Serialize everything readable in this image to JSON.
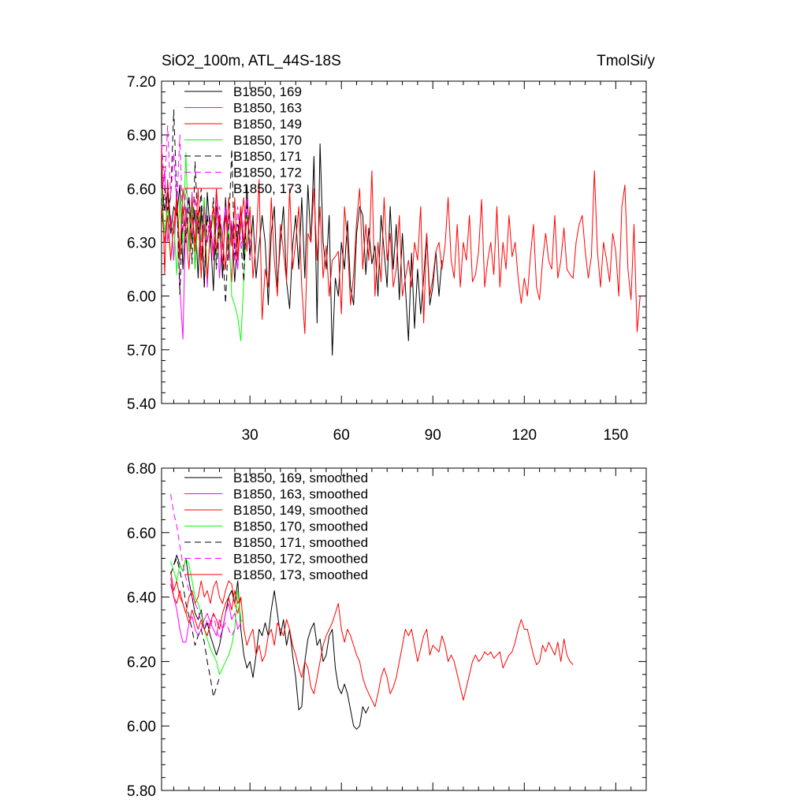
{
  "chart_data": [
    {
      "type": "line",
      "title_left": "SiO2_100m, ATL_44S-18S",
      "title_right": "TmolSi/y",
      "xlim": [
        1,
        160
      ],
      "ylim": [
        5.4,
        7.2
      ],
      "x_ticks": [
        30,
        60,
        90,
        120,
        150
      ],
      "x_tick_labels": [
        "30",
        "60",
        "90",
        "120",
        "150"
      ],
      "y_ticks": [
        5.4,
        5.7,
        6.0,
        6.3,
        6.6,
        6.9,
        7.2
      ],
      "y_tick_labels": [
        "5.40",
        "5.70",
        "6.00",
        "6.30",
        "6.60",
        "6.90",
        "7.20"
      ],
      "legend_position": "top-left",
      "series": [
        {
          "name": "B1850, 169",
          "color": "#000000",
          "dash": "solid",
          "x_start": 1,
          "values": [
            6.62,
            6.48,
            6.58,
            6.35,
            6.5,
            6.45,
            6.62,
            6.15,
            6.44,
            6.55,
            6.32,
            6.48,
            6.1,
            6.5,
            6.05,
            6.58,
            6.34,
            6.03,
            6.5,
            6.42,
            6.1,
            6.55,
            6.2,
            6.4,
            6.08,
            6.33,
            6.5,
            6.2,
            6.62,
            6.22,
            6.45,
            6.1,
            6.28,
            6.45,
            6.3,
            5.95,
            6.35,
            6.5,
            6.05,
            6.3,
            6.5,
            6.08,
            5.93,
            6.28,
            6.45,
            6.15,
            6.55,
            6.1,
            6.62,
            6.3,
            6.78,
            5.85,
            6.85,
            6.3,
            6.15,
            6.45,
            5.67,
            6.1,
            6.0,
            6.3,
            6.15,
            6.42,
            6.05,
            5.95,
            6.35,
            6.5,
            6.45,
            6.12,
            6.38,
            6.18,
            6.28,
            6.0,
            6.45,
            6.25,
            6.05,
            6.5,
            6.15,
            6.4,
            5.98,
            6.35,
            6.05,
            5.75,
            6.24,
            5.82,
            6.15,
            5.9,
            6.1,
            6.35,
            5.95,
            6.05,
            6.25,
            6.0,
            6.2
          ]
        },
        {
          "name": "B1850, 163",
          "color": "#ff00ff",
          "dash": "solid",
          "x_start": 1,
          "values": [
            6.55,
            6.7,
            6.3,
            6.45,
            6.2,
            6.6,
            6.05,
            5.76,
            6.5,
            6.25,
            6.58,
            6.15,
            6.45,
            6.3,
            6.55,
            6.05,
            6.4,
            6.25,
            6.6,
            6.1,
            6.35,
            6.5,
            6.2,
            6.42,
            6.3,
            6.15,
            6.5,
            6.28,
            6.55,
            6.2
          ]
        },
        {
          "name": "B1850, 149",
          "color": "#ff0000",
          "dash": "solid",
          "x_start": 1,
          "values": [
            6.85,
            6.12,
            6.65,
            6.4,
            6.35,
            6.5,
            6.2,
            6.6,
            6.45,
            6.3,
            6.55,
            6.25,
            6.48,
            6.1,
            6.52,
            6.3,
            6.42,
            6.2,
            6.6,
            6.35,
            6.18,
            6.45,
            6.3,
            6.08,
            6.55,
            6.2,
            6.4,
            6.55,
            6.25,
            6.5,
            6.1,
            6.3,
            6.65,
            5.87,
            6.15,
            6.05,
            6.55,
            6.2,
            6.0,
            6.4,
            6.25,
            6.08,
            6.6,
            6.15,
            6.3,
            6.5,
            6.05,
            5.79,
            6.35,
            6.3,
            6.6,
            6.2,
            6.5,
            6.1,
            6.28,
            6.0,
            6.2,
            6.22,
            6.25,
            5.9,
            6.5,
            6.3,
            5.95,
            6.12,
            6.42,
            6.6,
            6.15,
            6.4,
            6.2,
            6.7,
            6.0,
            6.3,
            6.08,
            6.55,
            6.2,
            6.35,
            6.05,
            6.15,
            6.45,
            6.0,
            6.1,
            6.2,
            6.05,
            6.3,
            6.2,
            6.5,
            5.85,
            6.35,
            6.0,
            6.1,
            6.25,
            6.3,
            6.15,
            6.28,
            6.55,
            6.2,
            6.1,
            6.4,
            6.05,
            6.3,
            6.2,
            6.45,
            6.08,
            6.12,
            6.25,
            6.54,
            6.05,
            6.2,
            6.3,
            6.12,
            6.5,
            6.05,
            6.3,
            6.15,
            6.45,
            6.22,
            6.3,
            6.1,
            5.96,
            6.1,
            6.0,
            6.22,
            6.4,
            6.05,
            5.98,
            6.2,
            6.35,
            6.2,
            6.15,
            6.45,
            6.1,
            6.2,
            6.38,
            6.15,
            6.12,
            6.1,
            6.3,
            6.4,
            6.45,
            6.25,
            6.1,
            6.22,
            6.7,
            6.25,
            6.05,
            6.3,
            6.2,
            6.08,
            6.35,
            6.25,
            6.0,
            6.5,
            6.62,
            6.15,
            5.98,
            6.4,
            5.8,
            6.0
          ]
        },
        {
          "name": "B1850, 170",
          "color": "#00ff00",
          "dash": "solid",
          "x_start": 1,
          "values": [
            6.6,
            6.35,
            6.5,
            6.2,
            6.42,
            6.12,
            6.55,
            6.3,
            6.8,
            6.25,
            6.5,
            6.15,
            6.45,
            6.3,
            6.55,
            6.1,
            6.35,
            6.45,
            6.2,
            6.4,
            6.3,
            6.15,
            6.42,
            6.0,
            5.95,
            5.88,
            5.75,
            6.1,
            6.45,
            6.3
          ]
        },
        {
          "name": "B1850, 171",
          "color": "#000000",
          "dash": "dashed",
          "x_start": 1,
          "values": [
            6.42,
            6.6,
            6.48,
            6.55,
            7.04,
            6.55,
            6.01,
            6.5,
            6.3,
            6.55,
            6.18,
            6.75,
            6.35,
            6.6,
            6.05,
            6.45,
            6.3,
            6.55,
            6.15,
            6.42,
            6.3,
            5.96,
            6.35,
            6.82,
            6.2,
            6.4,
            6.3,
            6.08,
            6.55,
            6.2
          ]
        },
        {
          "name": "B1850, 172",
          "color": "#ff00ff",
          "dash": "dashed",
          "x_start": 1,
          "values": [
            6.85,
            6.6,
            6.95,
            6.55,
            6.8,
            6.5,
            6.9,
            6.35,
            6.6,
            6.45,
            6.3,
            6.55,
            6.4,
            6.25,
            6.5,
            6.3,
            6.45,
            6.2,
            6.4,
            6.5,
            6.3,
            6.15,
            6.45,
            6.35,
            6.2,
            6.5,
            6.28,
            6.4,
            6.55,
            6.3
          ]
        },
        {
          "name": "B1850, 173",
          "color": "#ff0000",
          "dash": "solid",
          "x_start": 1,
          "values": [
            6.5,
            6.3,
            6.45,
            6.2,
            6.4,
            6.55,
            6.25,
            6.5,
            6.35,
            6.15,
            6.45,
            6.3,
            6.6,
            6.2,
            6.4,
            6.1,
            6.35,
            6.5,
            6.25,
            6.45,
            6.3,
            6.15,
            6.55,
            6.28,
            6.4,
            6.2,
            6.5,
            6.3,
            6.42,
            6.35
          ]
        }
      ]
    },
    {
      "type": "line",
      "xlim": [
        1,
        160
      ],
      "ylim": [
        5.8,
        6.8
      ],
      "x_ticks": [
        30,
        60,
        90,
        120,
        150
      ],
      "x_tick_labels": [],
      "y_ticks": [
        5.8,
        6.0,
        6.2,
        6.4,
        6.6,
        6.8
      ],
      "y_tick_labels": [
        "5.80",
        "6.00",
        "6.20",
        "6.40",
        "6.60",
        "6.80"
      ],
      "legend_position": "top-left",
      "series": [
        {
          "name": "B1850, 169, smoothed",
          "color": "#000000",
          "dash": "solid",
          "x_start": 5,
          "values": [
            6.5,
            6.53,
            6.5,
            6.48,
            6.52,
            6.45,
            6.4,
            6.35,
            6.33,
            6.36,
            6.3,
            6.32,
            6.28,
            6.25,
            6.22,
            6.25,
            6.3,
            6.35,
            6.4,
            6.42,
            6.38,
            6.45,
            6.3,
            6.22,
            6.18,
            6.2,
            6.15,
            6.22,
            6.3,
            6.28,
            6.32,
            6.28,
            6.36,
            6.42,
            6.35,
            6.28,
            6.33,
            6.25,
            6.3,
            6.22,
            6.15,
            6.05,
            6.06,
            6.2,
            6.27,
            6.3,
            6.32,
            6.25,
            6.27,
            6.2,
            6.22,
            6.28,
            6.3,
            6.18,
            6.12,
            6.1,
            6.13,
            6.1,
            6.05,
            6.0,
            5.99,
            6.0,
            6.06,
            6.04,
            6.06
          ]
        },
        {
          "name": "B1850, 163, smoothed",
          "color": "#ff00ff",
          "dash": "solid",
          "x_start": 4,
          "values": [
            6.46,
            6.4,
            6.36,
            6.3,
            6.26,
            6.26,
            6.32,
            6.34,
            6.3,
            6.28,
            6.3,
            6.33,
            6.35,
            6.32,
            6.3,
            6.28,
            6.33,
            6.3,
            6.35,
            6.38,
            6.33,
            6.35,
            6.3,
            6.32
          ]
        },
        {
          "name": "B1850, 149, smoothed",
          "color": "#ff0000",
          "dash": "solid",
          "x_start": 4,
          "values": [
            6.48,
            6.42,
            6.45,
            6.4,
            6.38,
            6.35,
            6.4,
            6.42,
            6.38,
            6.4,
            6.45,
            6.4,
            6.42,
            6.38,
            6.43,
            6.45,
            6.4,
            6.38,
            6.42,
            6.45,
            6.44,
            6.38,
            6.35,
            6.4,
            6.3,
            6.25,
            6.28,
            6.3,
            6.22,
            6.25,
            6.2,
            6.22,
            6.28,
            6.3,
            6.25,
            6.32,
            6.3,
            6.28,
            6.33,
            6.3,
            6.25,
            6.22,
            6.18,
            6.15,
            6.2,
            6.18,
            6.12,
            6.1,
            6.15,
            6.2,
            6.25,
            6.28,
            6.3,
            6.32,
            6.35,
            6.38,
            6.3,
            6.26,
            6.3,
            6.28,
            6.25,
            6.22,
            6.2,
            6.15,
            6.12,
            6.1,
            6.08,
            6.06,
            6.1,
            6.15,
            6.18,
            6.15,
            6.1,
            6.12,
            6.15,
            6.2,
            6.25,
            6.3,
            6.28,
            6.3,
            6.25,
            6.2,
            6.24,
            6.28,
            6.3,
            6.22,
            6.25,
            6.24,
            6.23,
            6.28,
            6.25,
            6.2,
            6.22,
            6.2,
            6.16,
            6.12,
            6.08,
            6.12,
            6.16,
            6.2,
            6.22,
            6.2,
            6.21,
            6.23,
            6.22,
            6.23,
            6.21,
            6.22,
            6.23,
            6.18,
            6.2,
            6.22,
            6.23,
            6.26,
            6.3,
            6.33,
            6.3,
            6.3,
            6.26,
            6.22,
            6.19,
            6.2,
            6.25,
            6.23,
            6.26,
            6.24,
            6.22,
            6.26,
            6.2,
            6.27,
            6.22,
            6.2,
            6.19
          ]
        },
        {
          "name": "B1850, 170, smoothed",
          "color": "#00ff00",
          "dash": "solid",
          "x_start": 4,
          "values": [
            6.51,
            6.48,
            6.45,
            6.5,
            6.48,
            6.52,
            6.5,
            6.45,
            6.4,
            6.38,
            6.35,
            6.3,
            6.27,
            6.24,
            6.22,
            6.2,
            6.16,
            6.18,
            6.2,
            6.22,
            6.25,
            6.3,
            6.42,
            6.33,
            6.32
          ]
        },
        {
          "name": "B1850, 171, smoothed",
          "color": "#000000",
          "dash": "dashed",
          "x_start": 4,
          "values": [
            6.47,
            6.5,
            6.52,
            6.48,
            6.44,
            6.38,
            6.34,
            6.3,
            6.25,
            6.28,
            6.3,
            6.26,
            6.2,
            6.15,
            6.09,
            6.12,
            6.15
          ]
        },
        {
          "name": "B1850, 172, smoothed",
          "color": "#ff00ff",
          "dash": "dashed",
          "x_start": 4,
          "values": [
            6.72,
            6.66,
            6.62,
            6.56,
            6.5,
            6.46,
            6.42,
            6.4,
            6.38,
            6.36,
            6.32,
            6.3,
            6.33,
            6.3,
            6.35,
            6.3,
            6.27,
            6.3,
            6.32,
            6.3,
            6.28,
            6.3
          ]
        },
        {
          "name": "B1850, 173, smoothed",
          "color": "#ff0000",
          "dash": "solid",
          "x_start": 4,
          "values": [
            6.44,
            6.4,
            6.38,
            6.42,
            6.38,
            6.35,
            6.32,
            6.36,
            6.33,
            6.3,
            6.33,
            6.3,
            6.28,
            6.32,
            6.35,
            6.33,
            6.3,
            6.35,
            6.38,
            6.4,
            6.36,
            6.42,
            6.38,
            6.4
          ]
        }
      ]
    }
  ]
}
